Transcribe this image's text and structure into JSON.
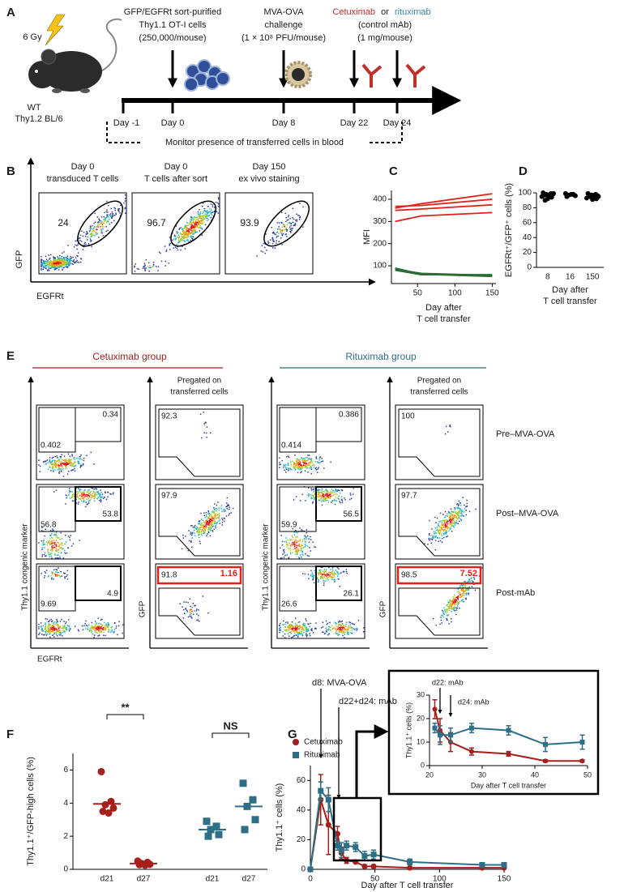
{
  "figure": {
    "A": {
      "label": "A",
      "dose": "6 Gy",
      "mouse": [
        "WT",
        "Thy1.2 BL/6"
      ],
      "cells": [
        "GFP/EGFRt sort-purified",
        "Thy1.1 OT-I cells",
        "(250,000/mouse)"
      ],
      "challenge": [
        "MVA-OVA",
        "challenge",
        "(1 × 10⁸ PFU/mouse)"
      ],
      "mab": {
        "cetuximab": "Cetuximab",
        "or": "or",
        "rituximab": "rituximab",
        "lines": [
          "(control mAb)",
          "(1 mg/mouse)"
        ]
      },
      "days": [
        "Day -1",
        "Day 0",
        "Day 8",
        "Day 22",
        "Day 24"
      ],
      "monitor": "Monitor presence of transferred cells in blood"
    },
    "B": {
      "label": "B",
      "xlabel": "EGFRt",
      "ylabel": "GFP",
      "plots": [
        {
          "title": [
            "Day 0",
            "transduced T cells"
          ],
          "value": "24"
        },
        {
          "title": [
            "Day 0",
            "T cells after sort"
          ],
          "value": "96.7"
        },
        {
          "title": [
            "Day 150",
            "ex vivo staining"
          ],
          "value": "93.9"
        }
      ]
    },
    "E": {
      "label": "E",
      "groups": [
        "Cetuximab group",
        "Rituximab group"
      ],
      "pregated": [
        "Pregated on",
        "transferred cells"
      ],
      "rows": [
        "Pre–MVA-OVA",
        "Post–MVA-OVA",
        "Post-mAb"
      ],
      "xlabel": "EGFRt",
      "ylabel": "Thy1.1 congenic marker",
      "gfp_label": "GFP",
      "cetuximab": [
        {
          "left": "0.402",
          "right": "0.34",
          "gfp": "92.3"
        },
        {
          "left": "56.8",
          "right": "53.8",
          "gfp": "97.9"
        },
        {
          "left": "9.69",
          "right": "4.9",
          "gfp": "91.8",
          "high": "1.16"
        }
      ],
      "rituximab": [
        {
          "left": "0.414",
          "right": "0.386",
          "gfp": "100"
        },
        {
          "left": "59.9",
          "right": "56.5",
          "gfp": "97.7"
        },
        {
          "left": "26.6",
          "right": "26.1",
          "gfp": "98.5",
          "high": "7.52"
        }
      ]
    }
  },
  "chart_data": [
    {
      "panel": "C",
      "type": "line",
      "x": [
        20,
        55,
        150
      ],
      "series": [
        {
          "color": "#e3211c",
          "values": [
            360,
            380,
            425
          ]
        },
        {
          "color": "#e3211c",
          "values": [
            368,
            372,
            400
          ]
        },
        {
          "color": "#e3211c",
          "values": [
            350,
            356,
            375
          ]
        },
        {
          "color": "#e3211c",
          "values": [
            300,
            325,
            340
          ]
        },
        {
          "color": "#2f6b34",
          "values": [
            90,
            62,
            52
          ]
        },
        {
          "color": "#2f6b34",
          "values": [
            80,
            60,
            60
          ]
        },
        {
          "color": "#2f6b34",
          "values": [
            85,
            66,
            57
          ]
        }
      ],
      "xlim": [
        15,
        155
      ],
      "ylim": [
        20,
        440
      ],
      "xticks": [
        50,
        100,
        150
      ],
      "yticks": [
        100,
        200,
        300,
        400
      ],
      "xlabel": [
        "Day after",
        "T cell transfer"
      ],
      "ylabel": "MFI"
    },
    {
      "panel": "D",
      "type": "strip",
      "categories": [
        "8",
        "16",
        "150"
      ],
      "color": "#000000",
      "values": [
        [
          100,
          99,
          98,
          98,
          97,
          96,
          95,
          94,
          92,
          90,
          99,
          97
        ],
        [
          99,
          98,
          97,
          96,
          95,
          98
        ],
        [
          99,
          98,
          97,
          96,
          95,
          94,
          93,
          92,
          91,
          96,
          95,
          97
        ]
      ],
      "ylim": [
        0,
        100
      ],
      "yticks": [
        0,
        20,
        40,
        60,
        80,
        100
      ],
      "xlabel": [
        "Day after",
        "T cell transfer"
      ],
      "ylabel": "EGFRt⁺/GFP⁺ cells (%)"
    },
    {
      "panel": "F",
      "type": "strip",
      "categories": [
        "d21",
        "d27",
        "d21",
        "d27"
      ],
      "series": [
        {
          "name": "Cetuximab",
          "color": "#a51f1d",
          "marker": "circle",
          "values": [
            [
              5.9,
              4.1,
              3.9,
              3.7,
              3.5,
              3.4
            ],
            [
              0.5,
              0.42,
              0.35,
              0.3,
              0.28,
              0.25
            ],
            null,
            null
          ],
          "means": [
            3.95,
            0.35,
            null,
            null
          ]
        },
        {
          "name": "Rituximab",
          "color": "#2d6f87",
          "marker": "square",
          "values": [
            null,
            null,
            [
              2.9,
              2.6,
              2.4,
              2.1,
              2.0
            ],
            [
              5.2,
              4.2,
              3.8,
              3.0,
              2.4
            ]
          ],
          "means": [
            null,
            null,
            2.4,
            3.8
          ]
        }
      ],
      "significance": [
        "**",
        "NS"
      ],
      "ylim": [
        0,
        7
      ],
      "yticks": [
        0,
        2,
        4,
        6
      ],
      "ylabel": "Thy1.1⁺/GFP-high cells (%)"
    },
    {
      "panel": "G",
      "type": "errorline",
      "x": [
        0,
        8,
        14,
        21,
        24,
        28,
        35,
        42,
        49,
        77,
        133,
        150
      ],
      "series": [
        {
          "color": "#a51f1d",
          "marker": "circle",
          "values": [
            0,
            47,
            30,
            24,
            11,
            6,
            5,
            2,
            2,
            1,
            1,
            1
          ],
          "errors": [
            0,
            17,
            20,
            5,
            4,
            2,
            1,
            1,
            1,
            0.5,
            0.5,
            0.5
          ]
        },
        {
          "color": "#2d6f87",
          "marker": "square",
          "values": [
            0,
            53,
            47,
            16,
            13,
            16,
            15,
            9,
            10,
            5,
            3,
            3
          ],
          "errors": [
            0,
            6,
            8,
            3,
            5,
            3,
            3,
            3,
            3,
            2,
            1,
            1
          ]
        }
      ],
      "xlim": [
        0,
        150
      ],
      "ylim": [
        0,
        70
      ],
      "xticks": [
        0,
        50,
        100,
        150
      ],
      "yticks": [
        0,
        20,
        40,
        60
      ],
      "xlabel": "Day after T cell transfer",
      "ylabel": "Thy1.1⁺ cells (%)",
      "annotations": [
        "d8: MVA-OVA",
        "d22+d24: mAb"
      ]
    },
    {
      "type": "errorline",
      "x": [
        21,
        22,
        24,
        28,
        35,
        42,
        49
      ],
      "series": [
        {
          "color": "#a51f1d",
          "marker": "circle",
          "values": [
            24,
            15,
            10,
            6,
            5,
            2,
            2
          ],
          "errors": [
            4,
            5,
            4,
            1.5,
            1,
            0.5,
            0.5
          ]
        },
        {
          "color": "#2d6f87",
          "marker": "square",
          "values": [
            16,
            13,
            13,
            16,
            15,
            9,
            10
          ],
          "errors": [
            2,
            4,
            3,
            2,
            2,
            3,
            3
          ]
        }
      ],
      "xlim": [
        20,
        50
      ],
      "ylim": [
        0,
        30
      ],
      "xticks": [
        20,
        30,
        40,
        50
      ],
      "yticks": [
        0,
        10,
        20,
        30
      ],
      "xlabel": "Day after T cell transfer",
      "ylabel": "Thy1.1⁺ cells (%)",
      "annotations": [
        "d22: mAb",
        "d24: mAb"
      ]
    }
  ]
}
